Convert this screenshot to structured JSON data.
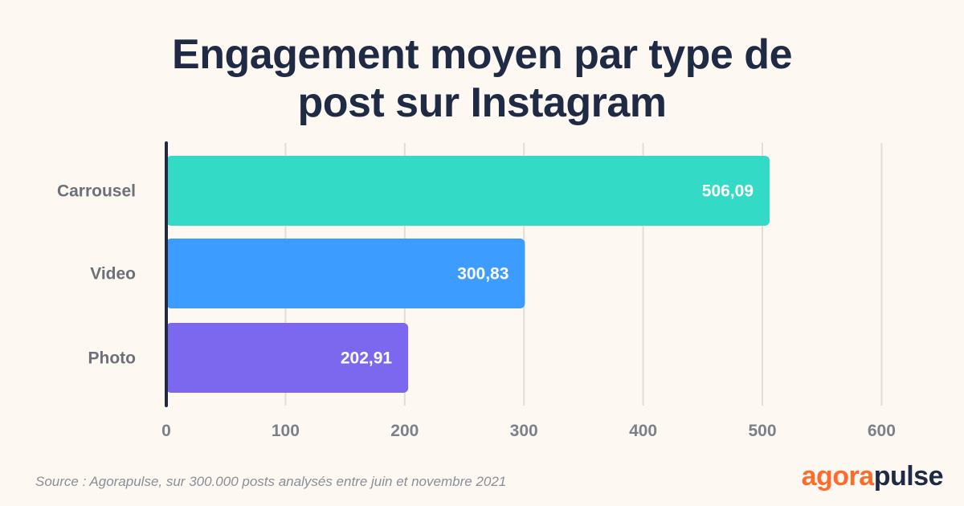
{
  "chart_data": {
    "type": "bar",
    "orientation": "horizontal",
    "title_lines": [
      "Engagement moyen par type de",
      "post sur Instagram"
    ],
    "categories": [
      "Carrousel",
      "Video",
      "Photo"
    ],
    "values": [
      506.09,
      300.83,
      202.91
    ],
    "value_labels": [
      "506,09",
      "300,83",
      "202,91"
    ],
    "bar_colors": [
      "#33dbc6",
      "#3d9cff",
      "#7b68ee"
    ],
    "xlim": [
      0,
      600
    ],
    "x_ticks": [
      0,
      100,
      200,
      300,
      400,
      500,
      600
    ],
    "x_tick_labels": [
      "0",
      "100",
      "200",
      "300",
      "400",
      "500",
      "600"
    ],
    "grid": true,
    "xlabel": "",
    "ylabel": ""
  },
  "footer": {
    "source": "Source : Agorapulse, sur 300.000 posts analysés entre juin et novembre 2021",
    "logo_part1": "agora",
    "logo_part2": "pulse"
  },
  "colors": {
    "background": "#fdf8f2",
    "title": "#1f2a44",
    "grid": "#e3ddd6",
    "axis": "#1f2a44",
    "tick_label": "#7b808b",
    "category_label": "#6b7079",
    "logo_accent": "#ff6b2b",
    "logo_dark": "#1f2a44"
  }
}
